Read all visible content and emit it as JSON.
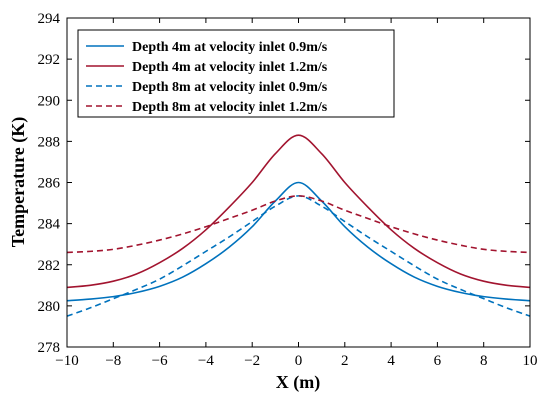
{
  "chart_data": {
    "type": "line",
    "xlabel": "X (m)",
    "ylabel": "Temperature (K)",
    "xlim": [
      -10,
      10
    ],
    "ylim": [
      278,
      294
    ],
    "xticks": [
      -10,
      -8,
      -6,
      -4,
      -2,
      0,
      2,
      4,
      6,
      8,
      10
    ],
    "yticks": [
      278,
      280,
      282,
      284,
      286,
      288,
      290,
      292,
      294
    ],
    "grid": false,
    "legend_position": "top-left",
    "series": [
      {
        "name": "Depth 4m at velocity inlet 0.9m/s",
        "color": "#0072BD",
        "dash": "solid",
        "x": [
          -10,
          -9,
          -8,
          -7,
          -6,
          -5,
          -4,
          -3,
          -2,
          -1,
          0,
          1,
          2,
          3,
          4,
          5,
          6,
          7,
          8,
          9,
          10
        ],
        "y": [
          280.25,
          280.33,
          280.45,
          280.65,
          280.95,
          281.4,
          282.05,
          282.85,
          283.85,
          285.1,
          286.0,
          285.1,
          283.85,
          282.85,
          282.05,
          281.4,
          280.95,
          280.65,
          280.45,
          280.33,
          280.25
        ]
      },
      {
        "name": "Depth 4m at velocity inlet 1.2m/s",
        "color": "#A2142F",
        "dash": "solid",
        "x": [
          -10,
          -9,
          -8,
          -7,
          -6,
          -5,
          -4,
          -3,
          -2,
          -1,
          0,
          1,
          2,
          3,
          4,
          5,
          6,
          7,
          8,
          9,
          10
        ],
        "y": [
          280.9,
          281.0,
          281.2,
          281.55,
          282.1,
          282.8,
          283.7,
          284.8,
          286.0,
          287.4,
          288.3,
          287.4,
          286.0,
          284.8,
          283.7,
          282.8,
          282.1,
          281.55,
          281.2,
          281.0,
          280.9
        ]
      },
      {
        "name": "Depth 8m at velocity inlet 0.9m/s",
        "color": "#0072BD",
        "dash": "dashed",
        "x": [
          -10,
          -9,
          -8,
          -7,
          -6,
          -5,
          -4,
          -3,
          -2,
          -1,
          0,
          1,
          2,
          3,
          4,
          5,
          6,
          7,
          8,
          9,
          10
        ],
        "y": [
          279.5,
          279.9,
          280.35,
          280.8,
          281.3,
          281.95,
          282.65,
          283.35,
          284.1,
          284.85,
          285.35,
          284.85,
          284.1,
          283.35,
          282.65,
          281.95,
          281.3,
          280.8,
          280.35,
          279.9,
          279.5
        ]
      },
      {
        "name": "Depth 8m at velocity inlet 1.2m/s",
        "color": "#A2142F",
        "dash": "dashed",
        "x": [
          -10,
          -9,
          -8,
          -7,
          -6,
          -5,
          -4,
          -3,
          -2,
          -1,
          0,
          1,
          2,
          3,
          4,
          5,
          6,
          7,
          8,
          9,
          10
        ],
        "y": [
          282.6,
          282.65,
          282.75,
          282.95,
          283.2,
          283.5,
          283.85,
          284.25,
          284.65,
          285.1,
          285.35,
          285.1,
          284.65,
          284.25,
          283.85,
          283.5,
          283.2,
          282.95,
          282.75,
          282.65,
          282.6
        ]
      }
    ]
  }
}
